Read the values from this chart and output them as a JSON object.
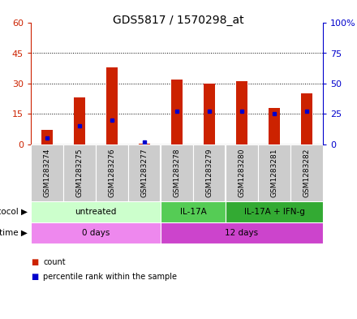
{
  "title": "GDS5817 / 1570298_at",
  "samples": [
    "GSM1283274",
    "GSM1283275",
    "GSM1283276",
    "GSM1283277",
    "GSM1283278",
    "GSM1283279",
    "GSM1283280",
    "GSM1283281",
    "GSM1283282"
  ],
  "counts": [
    7,
    23,
    38,
    0.5,
    32,
    30,
    31,
    18,
    25
  ],
  "percentiles": [
    5,
    15,
    20,
    2,
    27,
    27,
    27,
    25,
    27
  ],
  "ylim_left": [
    0,
    60
  ],
  "ylim_right": [
    0,
    100
  ],
  "yticks_left": [
    0,
    15,
    30,
    45,
    60
  ],
  "yticks_right": [
    0,
    25,
    50,
    75,
    100
  ],
  "ytick_labels_left": [
    "0",
    "15",
    "30",
    "45",
    "60"
  ],
  "ytick_labels_right": [
    "0",
    "25",
    "50",
    "75",
    "100%"
  ],
  "bar_color": "#cc2200",
  "dot_color": "#0000cc",
  "protocol_groups": [
    {
      "label": "untreated",
      "start": 0,
      "end": 4,
      "color": "#ccffcc"
    },
    {
      "label": "IL-17A",
      "start": 4,
      "end": 6,
      "color": "#55cc55"
    },
    {
      "label": "IL-17A + IFN-g",
      "start": 6,
      "end": 9,
      "color": "#33aa33"
    }
  ],
  "time_groups": [
    {
      "label": "0 days",
      "start": 0,
      "end": 4,
      "color": "#ee88ee"
    },
    {
      "label": "12 days",
      "start": 4,
      "end": 9,
      "color": "#cc44cc"
    }
  ],
  "legend_count_color": "#cc2200",
  "legend_dot_color": "#0000cc",
  "bg_color": "#ffffff",
  "sample_bg_color": "#cccccc"
}
